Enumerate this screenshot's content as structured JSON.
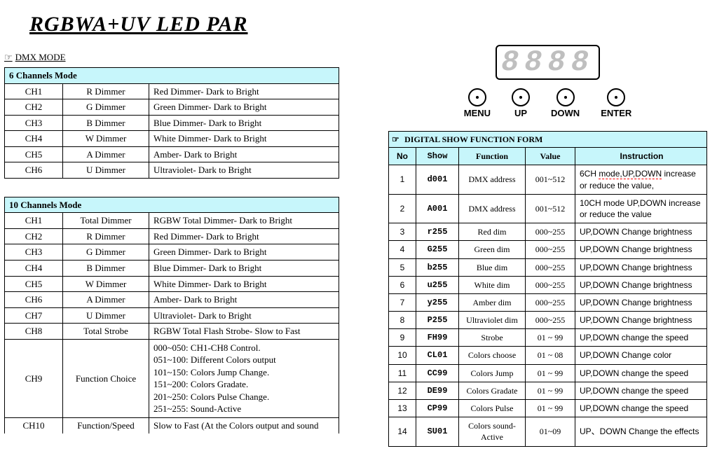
{
  "title": "RGBWA+UV LED PAR",
  "dmx_label": "DMX MODE",
  "pointer": "☞",
  "colors": {
    "header_bg": "#c7f6fb",
    "redline": "#ff0000",
    "seg_gray": "#bfbfbf"
  },
  "table6": {
    "header": "6 Channels    Mode",
    "rows": [
      {
        "ch": "CH1",
        "fn": "R Dimmer",
        "desc": "Red Dimmer- Dark to Bright"
      },
      {
        "ch": "CH2",
        "fn": "G Dimmer",
        "desc": "Green Dimmer- Dark to Bright"
      },
      {
        "ch": "CH3",
        "fn": "B Dimmer",
        "desc": "Blue Dimmer- Dark to Bright"
      },
      {
        "ch": "CH4",
        "fn": "W Dimmer",
        "desc": "White Dimmer- Dark to Bright"
      },
      {
        "ch": "CH5",
        "fn": "A Dimmer",
        "desc": "Amber- Dark to Bright"
      },
      {
        "ch": "CH6",
        "fn": "U Dimmer",
        "desc": "Ultraviolet- Dark to Bright"
      }
    ]
  },
  "table10": {
    "header": "10 Channels    Mode",
    "rows": [
      {
        "ch": "CH1",
        "fn": "Total Dimmer",
        "desc": "RGBW Total Dimmer- Dark to Bright"
      },
      {
        "ch": "CH2",
        "fn": "R Dimmer",
        "desc": "Red Dimmer- Dark to Bright"
      },
      {
        "ch": "CH3",
        "fn": "G Dimmer",
        "desc": "Green Dimmer- Dark to Bright"
      },
      {
        "ch": "CH4",
        "fn": "B Dimmer",
        "desc": "Blue Dimmer- Dark to Bright"
      },
      {
        "ch": "CH5",
        "fn": "W Dimmer",
        "desc": "White Dimmer- Dark to Bright"
      },
      {
        "ch": "CH6",
        "fn": "A Dimmer",
        "desc": "Amber- Dark to Bright"
      },
      {
        "ch": "CH7",
        "fn": "U Dimmer",
        "desc": "Ultraviolet- Dark to Bright"
      },
      {
        "ch": "CH8",
        "fn": "Total Strobe",
        "desc": "RGBW Total Flash Strobe- Slow to Fast"
      }
    ],
    "ch9": {
      "ch": "CH9",
      "fn": "Function Choice",
      "lines": [
        "000~050: CH1-CH8 Control.",
        "051~100: Different Colors output",
        "101~150: Colors Jump Change.",
        "151~200: Colors Gradate.",
        "201~250: Colors Pulse Change.",
        "251~255: Sound-Active"
      ]
    },
    "ch10": {
      "ch": "CH10",
      "fn": "Function/Speed",
      "desc": "Slow to Fast (At the Colors output and sound"
    }
  },
  "display": {
    "digits": "8888",
    "buttons": [
      "MENU",
      "UP",
      "DOWN",
      "ENTER"
    ]
  },
  "func_table": {
    "title": "DIGITAL SHOW FUNCTION FORM",
    "headers": [
      "No",
      "Show",
      "Function",
      "Value",
      "Instruction"
    ],
    "rows": [
      {
        "no": "1",
        "show": "d001",
        "func": "DMX address",
        "val": "001~512",
        "instr_pre": "6CH ",
        "instr_red": "mode,UP,DOWN",
        "instr_post": " increase or reduce the value,"
      },
      {
        "no": "2",
        "show": "A001",
        "func": "DMX address",
        "val": "001~512",
        "instr": "10CH mode UP,DOWN increase or reduce the value"
      },
      {
        "no": "3",
        "show": "r255",
        "func": "Red dim",
        "val": "000~255",
        "instr": "UP,DOWN Change brightness"
      },
      {
        "no": "4",
        "show": "G255",
        "func": "Green dim",
        "val": "000~255",
        "instr": "UP,DOWN Change brightness"
      },
      {
        "no": "5",
        "show": "b255",
        "func": "Blue  dim",
        "val": "000~255",
        "instr": "UP,DOWN Change brightness"
      },
      {
        "no": "6",
        "show": "u255",
        "func": "White dim",
        "val": "000~255",
        "instr": "UP,DOWN Change brightness"
      },
      {
        "no": "7",
        "show": "y255",
        "func": "Amber dim",
        "val": "000~255",
        "instr": "UP,DOWN Change brightness"
      },
      {
        "no": "8",
        "show": "P255",
        "func": "Ultraviolet dim",
        "val": "000~255",
        "instr": "UP,DOWN Change brightness"
      },
      {
        "no": "9",
        "show": "FH99",
        "func": "Strobe",
        "val": "01 ~ 99",
        "instr": "UP,DOWN change the speed"
      },
      {
        "no": "10",
        "show": "CL01",
        "func": "Colors choose",
        "val": "01 ~ 08",
        "instr": "UP,DOWN Change color"
      },
      {
        "no": "11",
        "show": "CC99",
        "func": "Colors Jump",
        "val": "01 ~ 99",
        "instr": "UP,DOWN change the speed"
      },
      {
        "no": "12",
        "show": "DE99",
        "func": "Colors Gradate",
        "val": "01 ~ 99",
        "instr": "UP,DOWN change the speed"
      },
      {
        "no": "13",
        "show": "CP99",
        "func": "Colors Pulse",
        "val": "01 ~ 99",
        "instr": "UP,DOWN change the speed"
      },
      {
        "no": "14",
        "show": "SU01",
        "func": "Colors sound-Active",
        "val": "01~09",
        "instr": "UP、DOWN Change the effects"
      }
    ]
  }
}
